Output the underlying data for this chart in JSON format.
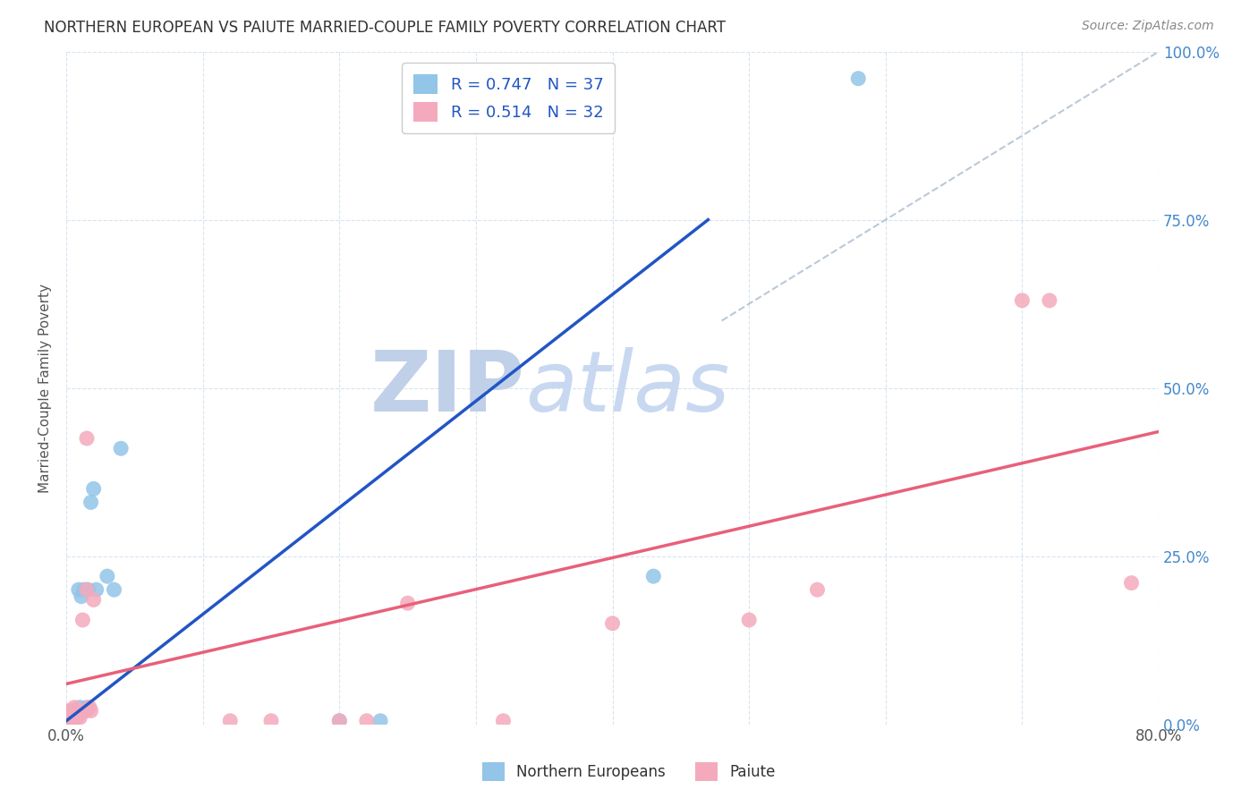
{
  "title": "NORTHERN EUROPEAN VS PAIUTE MARRIED-COUPLE FAMILY POVERTY CORRELATION CHART",
  "source": "Source: ZipAtlas.com",
  "ylabel": "Married-Couple Family Poverty",
  "xlim": [
    0.0,
    0.8
  ],
  "ylim": [
    0.0,
    1.0
  ],
  "xtick_pos": [
    0.0,
    0.1,
    0.2,
    0.3,
    0.4,
    0.5,
    0.6,
    0.7,
    0.8
  ],
  "xtick_labels_shown": {
    "0.0": "0.0%",
    "0.80": "80.0%"
  },
  "yticks": [
    0.0,
    0.25,
    0.5,
    0.75,
    1.0
  ],
  "ytick_labels": [
    "0.0%",
    "25.0%",
    "50.0%",
    "75.0%",
    "100.0%"
  ],
  "blue_R": 0.747,
  "blue_N": 37,
  "pink_R": 0.514,
  "pink_N": 32,
  "blue_color": "#92C5E8",
  "pink_color": "#F4AABC",
  "blue_line_color": "#2255C4",
  "pink_line_color": "#E8607A",
  "watermark_zip_color": "#C0D0E8",
  "watermark_atlas_color": "#C8D8F0",
  "blue_points_x": [
    0.001,
    0.001,
    0.002,
    0.002,
    0.002,
    0.003,
    0.003,
    0.003,
    0.004,
    0.004,
    0.004,
    0.005,
    0.005,
    0.005,
    0.006,
    0.006,
    0.007,
    0.007,
    0.008,
    0.009,
    0.01,
    0.011,
    0.012,
    0.013,
    0.014,
    0.015,
    0.016,
    0.018,
    0.02,
    0.022,
    0.03,
    0.035,
    0.04,
    0.2,
    0.23,
    0.43,
    0.58
  ],
  "blue_points_y": [
    0.005,
    0.008,
    0.005,
    0.01,
    0.012,
    0.005,
    0.01,
    0.015,
    0.01,
    0.015,
    0.02,
    0.005,
    0.01,
    0.02,
    0.01,
    0.018,
    0.015,
    0.02,
    0.02,
    0.2,
    0.025,
    0.19,
    0.02,
    0.2,
    0.02,
    0.025,
    0.2,
    0.33,
    0.35,
    0.2,
    0.22,
    0.2,
    0.41,
    0.005,
    0.005,
    0.22,
    0.96
  ],
  "pink_points_x": [
    0.001,
    0.002,
    0.003,
    0.004,
    0.005,
    0.006,
    0.006,
    0.007,
    0.008,
    0.008,
    0.009,
    0.01,
    0.011,
    0.012,
    0.013,
    0.015,
    0.015,
    0.017,
    0.018,
    0.02,
    0.12,
    0.15,
    0.2,
    0.22,
    0.25,
    0.32,
    0.4,
    0.5,
    0.55,
    0.7,
    0.72,
    0.78
  ],
  "pink_points_y": [
    0.01,
    0.02,
    0.01,
    0.015,
    0.01,
    0.015,
    0.025,
    0.02,
    0.01,
    0.02,
    0.015,
    0.01,
    0.02,
    0.155,
    0.02,
    0.425,
    0.2,
    0.025,
    0.02,
    0.185,
    0.005,
    0.005,
    0.005,
    0.005,
    0.18,
    0.005,
    0.15,
    0.155,
    0.2,
    0.63,
    0.63,
    0.21
  ],
  "blue_line_x": [
    0.0,
    0.47
  ],
  "blue_line_y": [
    0.005,
    0.75
  ],
  "pink_line_x": [
    0.0,
    0.8
  ],
  "pink_line_y": [
    0.06,
    0.435
  ],
  "diag_line_x": [
    0.48,
    0.8
  ],
  "diag_line_y": [
    0.6,
    1.0
  ],
  "background_color": "#FFFFFF",
  "grid_color": "#D8E4F0",
  "legend_labels": [
    "Northern Europeans",
    "Paiute"
  ]
}
